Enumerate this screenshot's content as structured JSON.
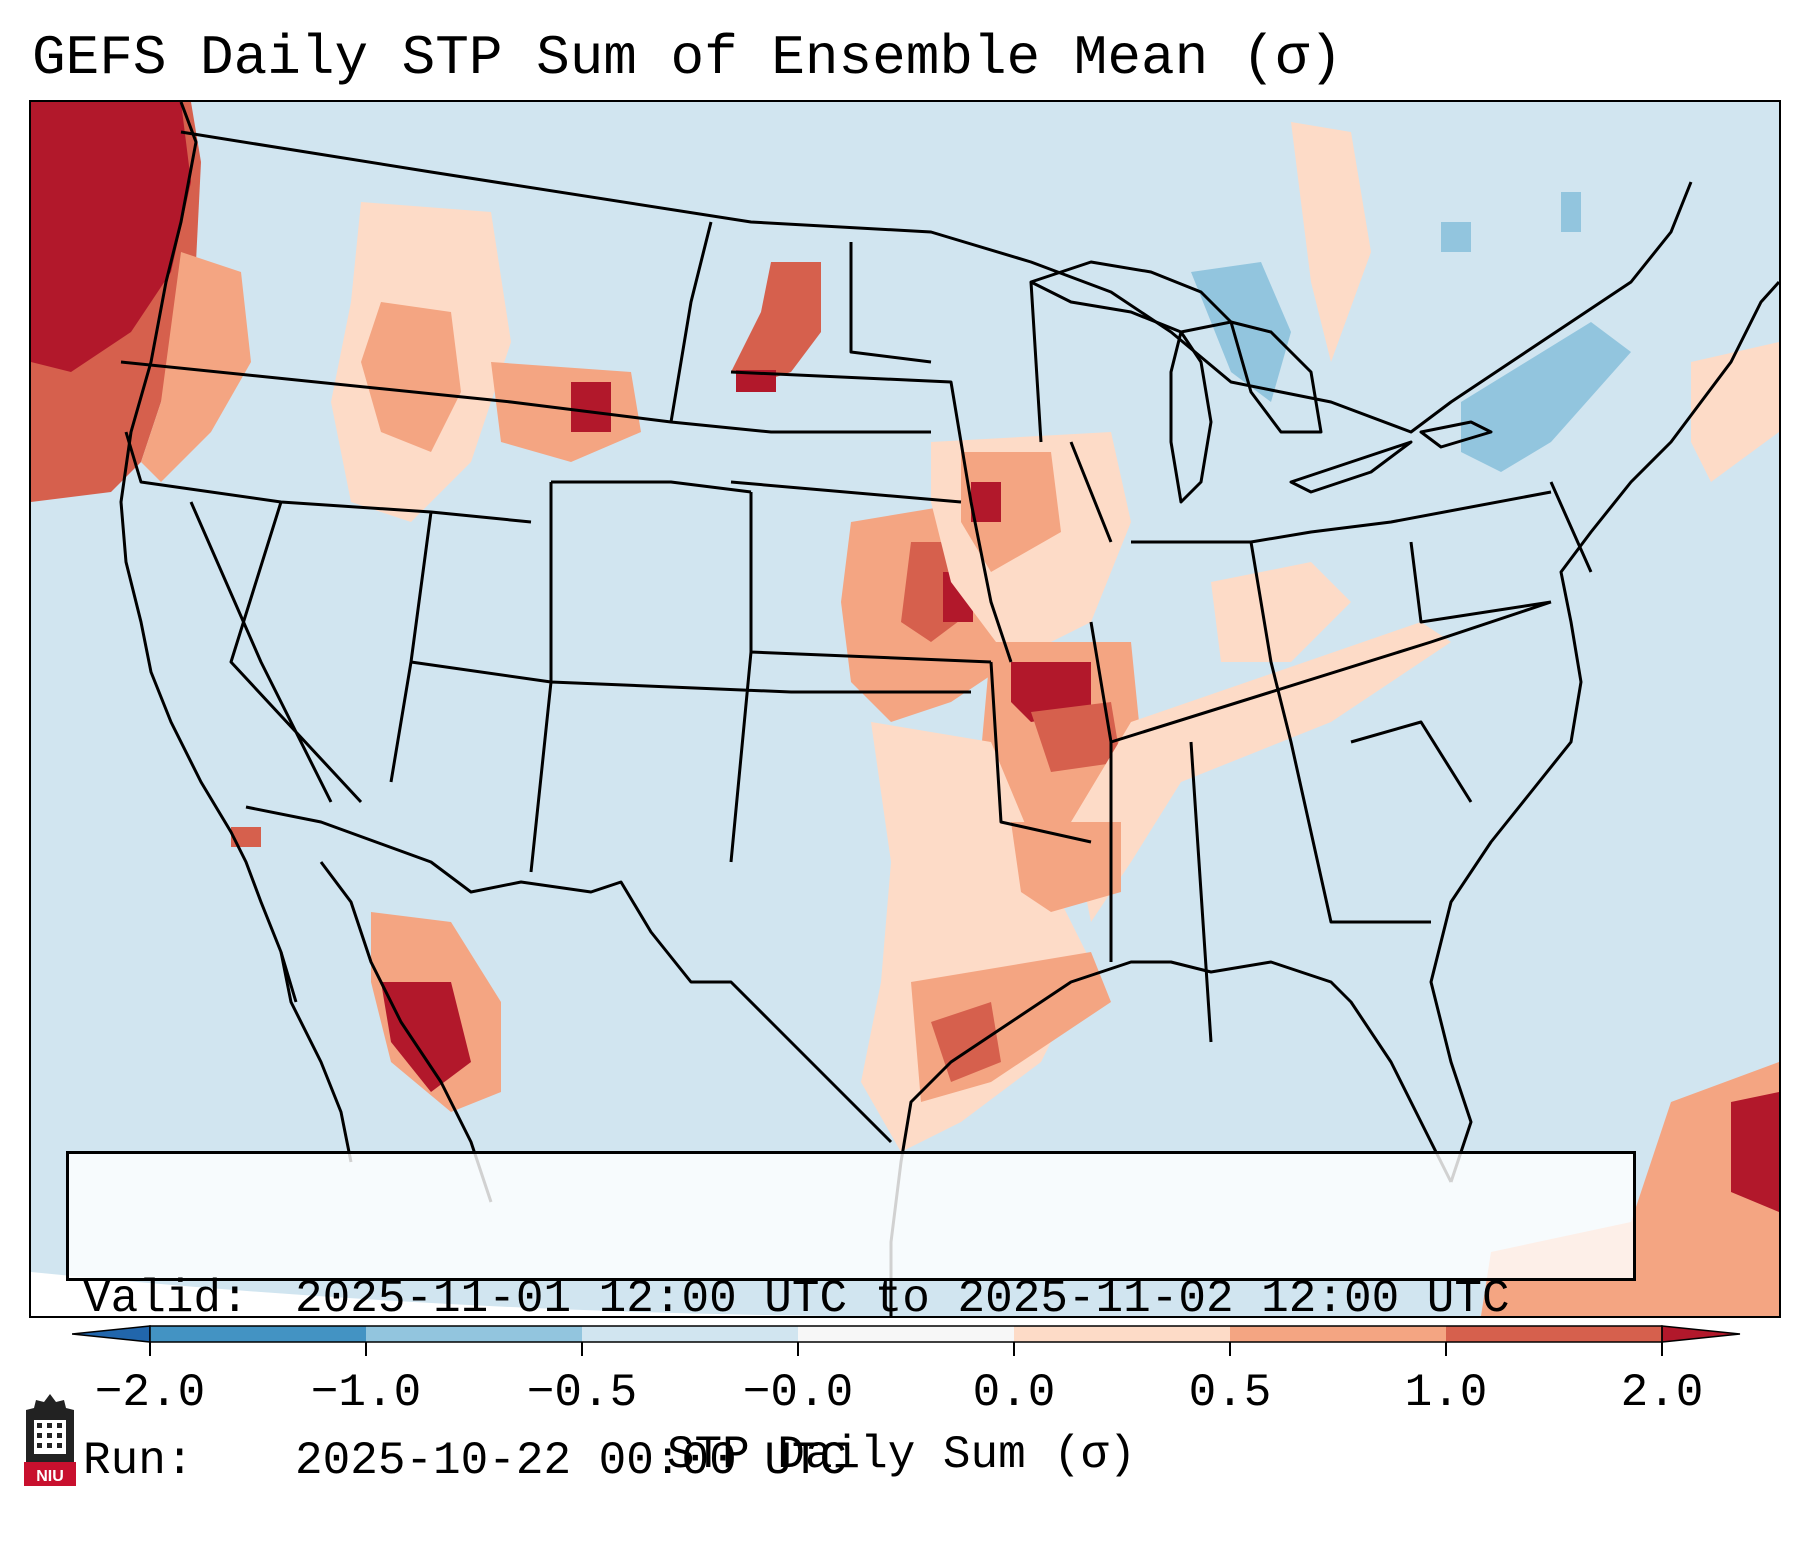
{
  "title": "GEFS Daily STP Sum of Ensemble Mean (σ)",
  "info": {
    "valid_label": "Valid:",
    "valid_value": "2025-11-01 12:00 UTC to 2025-11-02 12:00 UTC",
    "run_label": "Run:",
    "run_value": "2025-10-22 00:00 UTC"
  },
  "colorbar": {
    "label": "STP Daily Sum (σ)",
    "ticks": [
      "−2.0",
      "−1.0",
      "−0.5",
      "−0.0",
      "0.0",
      "0.5",
      "1.0",
      "2.0"
    ],
    "bins": [
      {
        "range": "< -2.0",
        "color": "#2166ac"
      },
      {
        "range": "-2.0 to -1.0",
        "color": "#4393c3"
      },
      {
        "range": "-1.0 to -0.5",
        "color": "#92c5de"
      },
      {
        "range": "-0.5 to -0.0",
        "color": "#d1e5f0"
      },
      {
        "range": "-0.0 to 0.0",
        "color": "#f7f7f7"
      },
      {
        "range": "0.0 to 0.5",
        "color": "#fddbc7"
      },
      {
        "range": "0.5 to 1.0",
        "color": "#f4a582"
      },
      {
        "range": "1.0 to 2.0",
        "color": "#d6604d"
      },
      {
        "range": "> 2.0",
        "color": "#b2182b"
      }
    ]
  },
  "logo": {
    "text": "NIU",
    "icon": "university-seal-icon",
    "color": "#c8102e"
  },
  "colors": {
    "background": "#d1e5f0",
    "ocean_far": "#f7f7f7"
  }
}
